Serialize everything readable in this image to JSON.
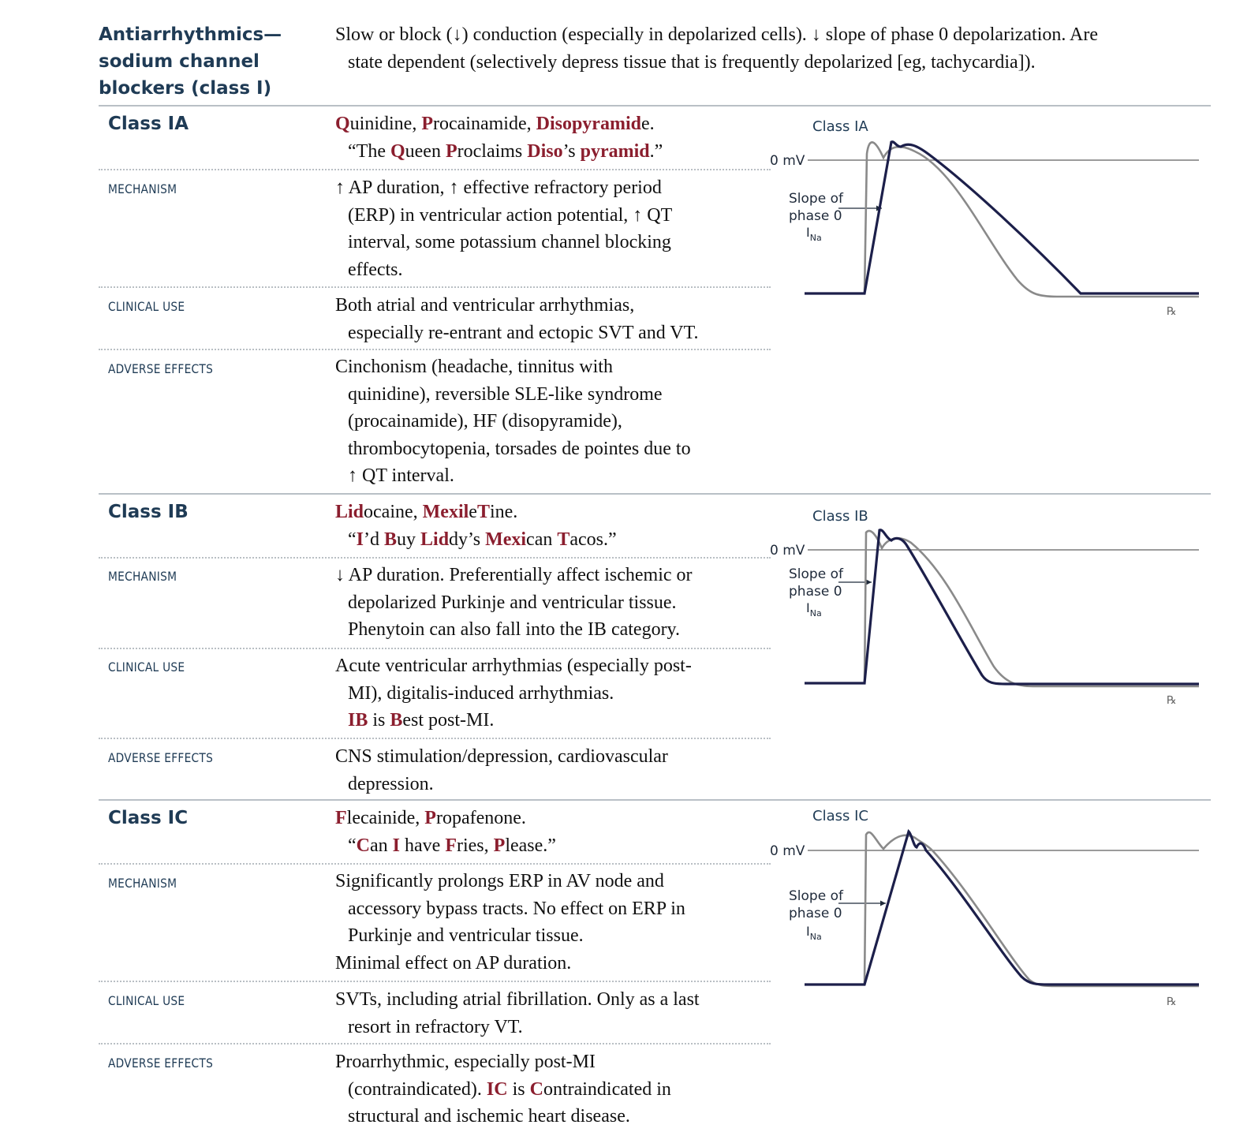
{
  "header": {
    "title_lines": [
      "Antiarrhythmics—",
      "sodium channel",
      "blockers (class I)"
    ],
    "intro_lines": [
      "Slow or block (↓) conduction (especially in depolarized cells). ↓ slope of phase 0 depolarization. Are",
      "state dependent (selectively depress tissue that is frequently depolarized [eg, tachycardia])."
    ]
  },
  "labels": {
    "mechanism": "MECHANISM",
    "clinical_use": "CLINICAL USE",
    "adverse_effects": "ADVERSE EFFECTS"
  },
  "classes": [
    {
      "title_prefix": "Class I",
      "title_suffix": "A",
      "drugs_line": "Quinidine, Procainamide, Disopyramide.",
      "mnemonic": "“The Queen Proclaims Diso’s pyramid.”",
      "mechanism_lines": [
        "↑ AP duration, ↑ effective refractory period",
        "(ERP) in ventricular action potential, ↑ QT",
        "interval, some potassium channel blocking",
        "effects."
      ],
      "clinical_use_lines": [
        "Both atrial and ventricular arrhythmias,",
        "especially re-entrant and ectopic SVT and VT."
      ],
      "adverse_lines": [
        "Cinchonism (headache, tinnitus with",
        "quinidine), reversible SLE-like syndrome",
        "(procainamide), HF (disopyramide),",
        "thrombocytopenia, torsades de pointes due to",
        "↑ QT interval."
      ],
      "figure": {
        "title": "Class IA",
        "zero_label": "0 mV",
        "slope_lines": [
          "Slope of",
          "phase 0"
        ],
        "current_label": "I",
        "current_sub": "Na",
        "mark": "℞"
      }
    },
    {
      "title_prefix": "Class I",
      "title_suffix": "B",
      "drugs_line": "Lidocaine, MexileTine.",
      "mnemonic": "“I’d Buy Liddy’s Mexican Tacos.”",
      "mechanism_lines": [
        "↓ AP duration. Preferentially affect ischemic or",
        "depolarized Purkinje and ventricular tissue.",
        "Phenytoin can also fall into the IB category."
      ],
      "clinical_use_lines": [
        "Acute ventricular arrhythmias (especially post-",
        "MI), digitalis-induced arrhythmias.",
        "IB is Best post-MI."
      ],
      "adverse_lines": [
        "CNS stimulation/depression, cardiovascular",
        "depression."
      ],
      "figure": {
        "title": "Class IB",
        "zero_label": "0 mV",
        "slope_lines": [
          "Slope of",
          "phase 0"
        ],
        "current_label": "I",
        "current_sub": "Na",
        "mark": "℞"
      }
    },
    {
      "title_prefix": "Class I",
      "title_suffix": "C",
      "drugs_line": "Flecainide, Propafenone.",
      "mnemonic": "“Can I have Fries, Please.”",
      "mechanism_lines": [
        "Significantly prolongs ERP in AV node and",
        "accessory bypass tracts. No effect on ERP in",
        "Purkinje and ventricular tissue.",
        "Minimal effect on AP duration."
      ],
      "clinical_use_lines": [
        "SVTs, including atrial fibrillation. Only as a last",
        "resort in refractory VT."
      ],
      "adverse_lines": [
        "Proarrhythmic, especially post-MI",
        "(contraindicated). IC is Contraindicated in",
        "structural and ischemic heart disease."
      ],
      "figure": {
        "title": "Class IC",
        "zero_label": "0 mV",
        "slope_lines": [
          "Slope of",
          "phase 0"
        ],
        "current_label": "I",
        "current_sub": "Na",
        "mark": "℞"
      }
    }
  ],
  "colors": {
    "heading_navy": "#1f3b55",
    "highlight_red": "#8b1e2e",
    "drug_curve": "#1c1f4a",
    "baseline_curve": "#8a8a8a"
  }
}
